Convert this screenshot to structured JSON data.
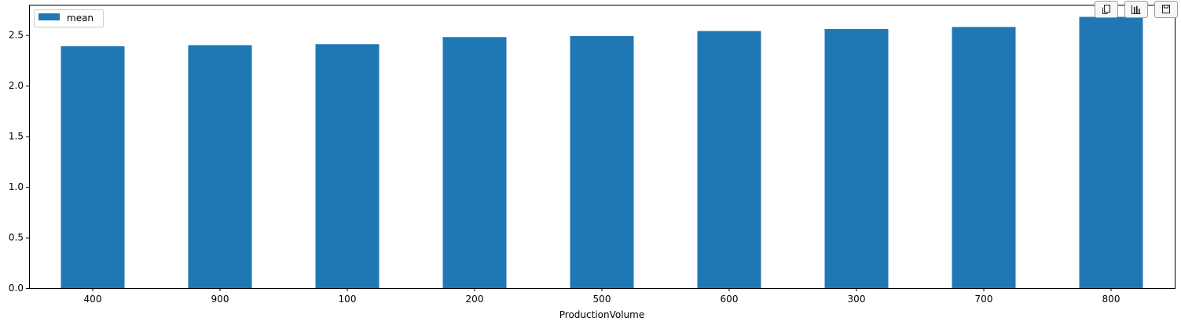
{
  "toolbar": {
    "buttons": [
      {
        "icon": "copy-icon"
      },
      {
        "icon": "bar-chart-icon"
      },
      {
        "icon": "save-icon"
      }
    ]
  },
  "chart_data": {
    "type": "bar",
    "title": "",
    "xlabel": "ProductionVolume",
    "ylabel": "",
    "categories": [
      "400",
      "900",
      "100",
      "200",
      "500",
      "600",
      "300",
      "700",
      "800"
    ],
    "series": [
      {
        "name": "mean",
        "color": "#1f77b4",
        "values": [
          2.39,
          2.4,
          2.41,
          2.48,
          2.49,
          2.54,
          2.56,
          2.58,
          2.68
        ]
      }
    ],
    "ylim": [
      0,
      2.8
    ],
    "yticks": [
      0.0,
      0.5,
      1.0,
      1.5,
      2.0,
      2.5
    ],
    "ytick_labels": [
      "0.0",
      "0.5",
      "1.0",
      "1.5",
      "2.0",
      "2.5"
    ],
    "legend": "top-left",
    "grid": false
  }
}
